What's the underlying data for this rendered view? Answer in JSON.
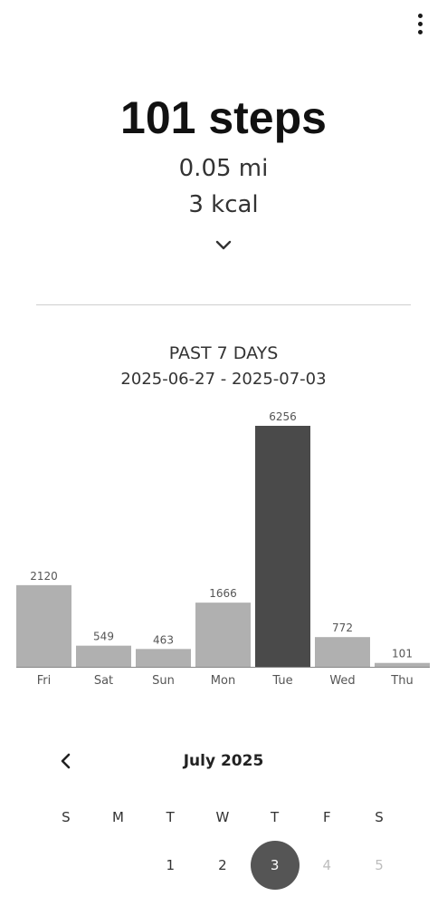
{
  "summary": {
    "steps": "101 steps",
    "distance": "0.05 mi",
    "calories": "3 kcal"
  },
  "period": {
    "title": "PAST 7 DAYS",
    "range": "2025-06-27 - 2025-07-03"
  },
  "chart_data": {
    "type": "bar",
    "categories": [
      "Fri",
      "Sat",
      "Sun",
      "Mon",
      "Tue",
      "Wed",
      "Thu"
    ],
    "values": [
      2120,
      549,
      463,
      1666,
      6256,
      772,
      101
    ],
    "highlight_index": 4,
    "colors": {
      "bar": "#b0b0b0",
      "highlight": "#4a4a4a",
      "axis": "#888888",
      "label": "#555555"
    }
  },
  "calendar": {
    "month_label": "July 2025",
    "weekdays": [
      "S",
      "M",
      "T",
      "W",
      "T",
      "F",
      "S"
    ],
    "days": [
      {
        "label": "",
        "state": "empty"
      },
      {
        "label": "",
        "state": "empty"
      },
      {
        "label": "1",
        "state": "normal"
      },
      {
        "label": "2",
        "state": "normal"
      },
      {
        "label": "3",
        "state": "selected"
      },
      {
        "label": "4",
        "state": "future"
      },
      {
        "label": "5",
        "state": "future"
      }
    ]
  },
  "icons": {
    "menu": "more-vertical-icon",
    "expand": "chevron-down-icon",
    "prev": "chevron-left-icon"
  }
}
